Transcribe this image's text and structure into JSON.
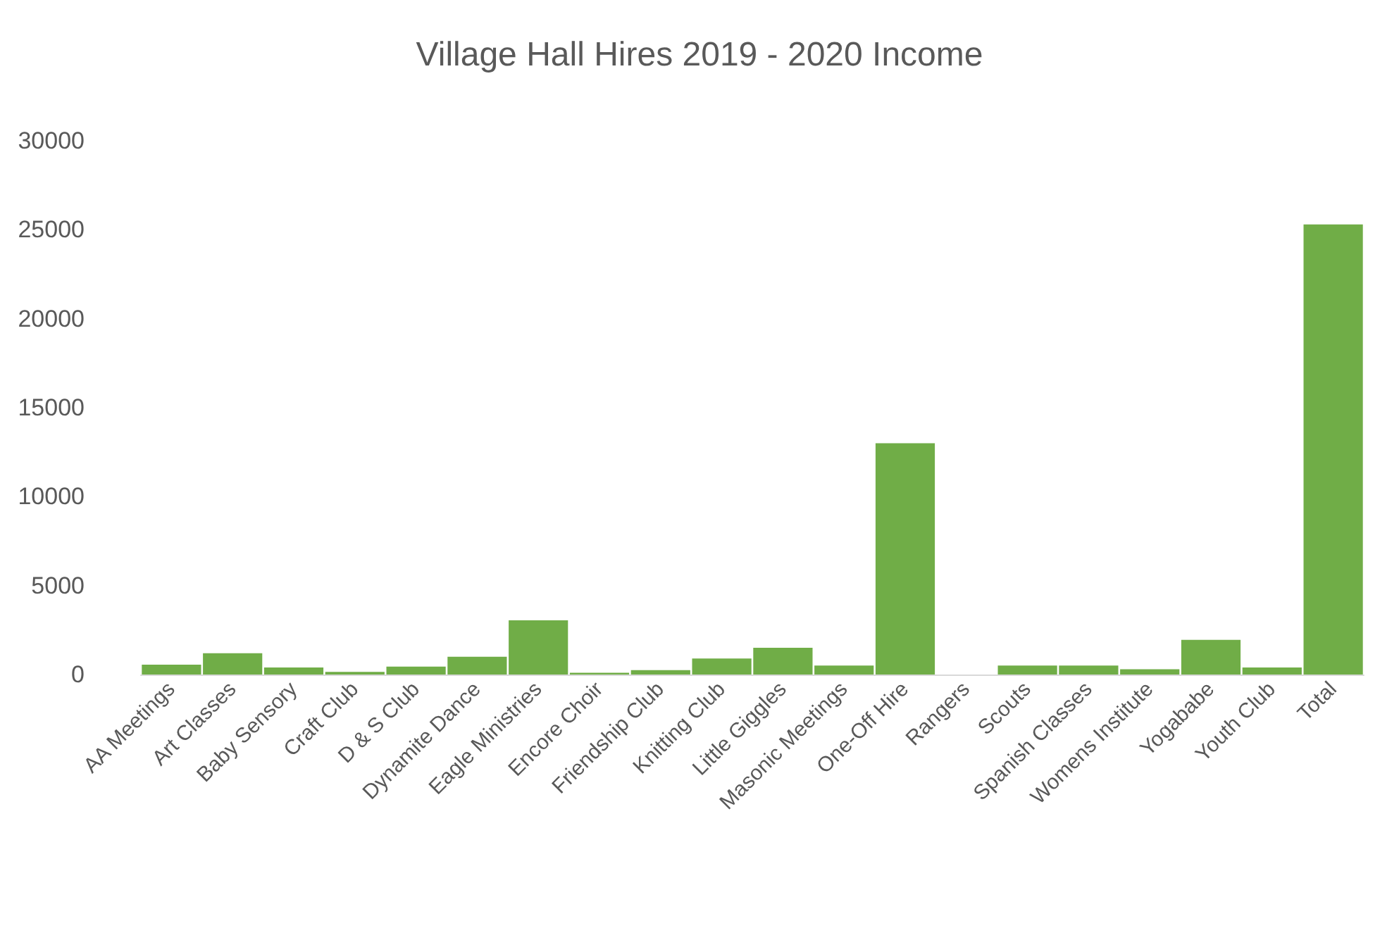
{
  "chart_data": {
    "type": "bar",
    "title": "Village Hall Hires 2019 - 2020 Income",
    "categories": [
      "AA Meetings",
      "Art Classes",
      "Baby Sensory",
      "Craft Club",
      "D & S Club",
      "Dynamite Dance",
      "Eagle Ministries",
      "Encore Choir",
      "Friendship Club",
      "Knitting Club",
      "Little Giggles",
      "Masonic Meetings",
      "One-Off Hire",
      "Rangers",
      "Scouts",
      "Spanish Classes",
      "Womens Institute",
      "Yogababe",
      "Youth Club",
      "Total"
    ],
    "values": [
      550,
      1200,
      400,
      150,
      450,
      1000,
      3050,
      100,
      250,
      900,
      1500,
      500,
      13000,
      0,
      500,
      500,
      300,
      1950,
      400,
      25300
    ],
    "color": "#70ad47",
    "ylim": [
      0,
      30000
    ],
    "yticks": [
      0,
      5000,
      10000,
      15000,
      20000,
      25000,
      30000
    ],
    "grid": false
  }
}
